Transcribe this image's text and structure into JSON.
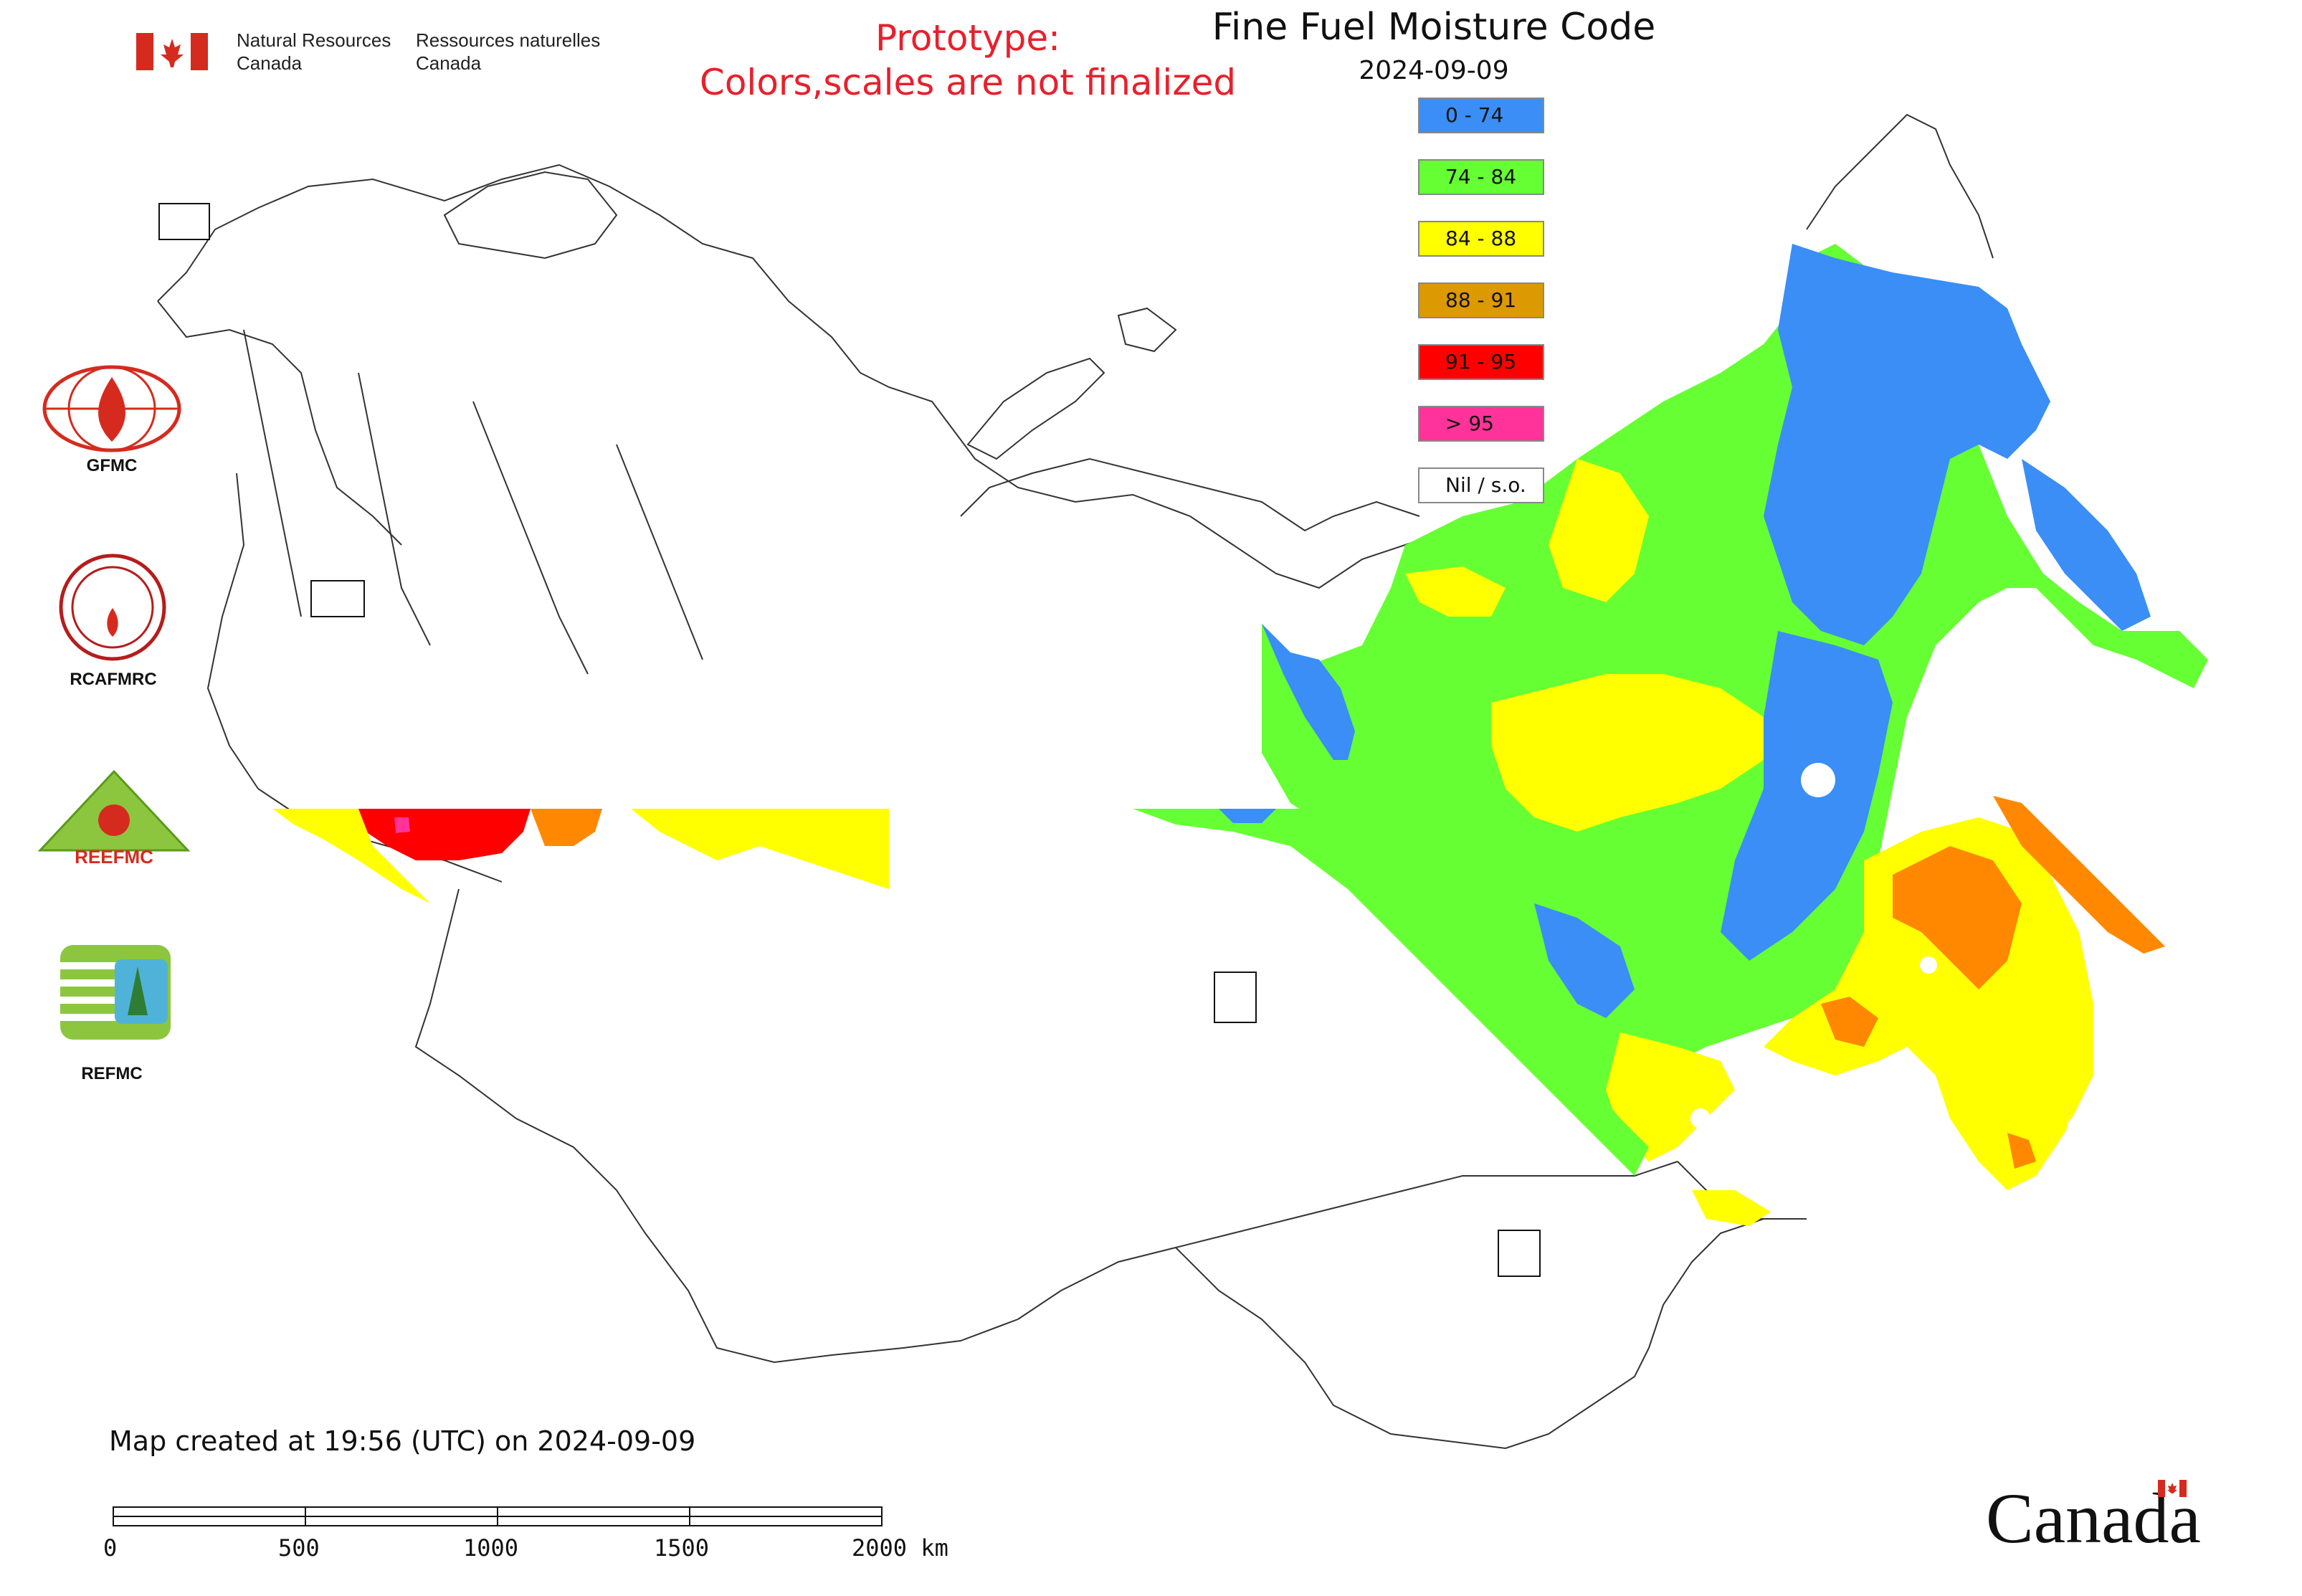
{
  "header": {
    "org_en": "Natural Resources\nCanada",
    "org_fr": "Ressources naturelles\nCanada",
    "prototype_line1": "Prototype:",
    "prototype_line2": "Colors,scales are not finalized"
  },
  "map": {
    "title": "Fine Fuel Moisture Code",
    "date": "2024-09-09",
    "created_note": "Map created at 19:56 (UTC) on 2024-09-09",
    "wordmark": "Canada"
  },
  "legend": [
    {
      "label": "0 - 74",
      "color": "#3a8ef6"
    },
    {
      "label": "74 - 84",
      "color": "#66ff33"
    },
    {
      "label": "84 - 88",
      "color": "#ffff00"
    },
    {
      "label": "88 - 91",
      "color": "#dd9900"
    },
    {
      "label": "91 - 95",
      "color": "#ff0000"
    },
    {
      "label": "> 95",
      "color": "#ff3399"
    },
    {
      "label": "Nil / s.o.",
      "color": "#ffffff"
    }
  ],
  "logos": [
    {
      "label": "GFMC",
      "icon": "gfmc-globe-flame-icon"
    },
    {
      "label": "RCAFMRC",
      "icon": "rcafmrc-seal-icon"
    },
    {
      "label": "",
      "icon": "reefmc-triangle-icon"
    },
    {
      "label": "REFMC",
      "icon": "refmc-sigma-icon"
    }
  ],
  "logo_text": {
    "reefmc_wordmark": "REEFMC",
    "rcafmrc_wordmark": "RCAFMRC"
  },
  "scale_bar": {
    "labels": [
      "0",
      "500",
      "1000",
      "1500",
      "2000 km"
    ]
  }
}
